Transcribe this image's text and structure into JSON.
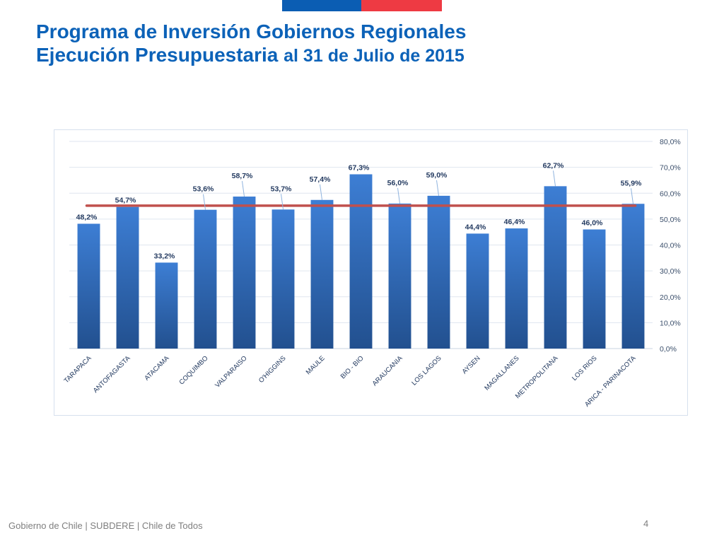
{
  "header": {
    "title_line1": "Programa de Inversión Gobiernos Regionales",
    "title_line2_bold": "Ejecución Presupuestaria",
    "title_line2_rest": "al 31 de Julio de 2015"
  },
  "footer": {
    "text": "Gobierno de Chile | SUBDERE | Chile de Todos",
    "page_number": "4"
  },
  "colors": {
    "flag_blue": "#0b5db3",
    "flag_red": "#ee3a43",
    "title": "#0c62b8",
    "bar_top": "#3d7ed4",
    "bar_bottom": "#22508f",
    "avg_line": "#c0504d"
  },
  "chart_data": {
    "type": "bar",
    "title": "",
    "xlabel": "",
    "ylabel": "",
    "ylim": [
      0,
      80
    ],
    "yticks": [
      "0,0%",
      "10,0%",
      "20,0%",
      "30,0%",
      "40,0%",
      "50,0%",
      "60,0%",
      "70,0%",
      "80,0%"
    ],
    "ytick_values": [
      0,
      10,
      20,
      30,
      40,
      50,
      60,
      70,
      80
    ],
    "y_axis_side": "right",
    "grid": true,
    "categories": [
      "TARAPACA",
      "ANTOFAGASTA",
      "ATACAMA",
      "COQUIMBO",
      "VALPARAISO",
      "O'HIGGINS",
      "MAULE",
      "BIO - BIO",
      "ARAUCANIA",
      "LOS LAGOS",
      "AYSEN",
      "MAGALLANES",
      "METROPOLITANA",
      "LOS RIOS",
      "ARICA - PARINACOTA"
    ],
    "values": [
      48.2,
      54.7,
      33.2,
      53.6,
      58.7,
      53.7,
      57.4,
      67.3,
      56.0,
      59.0,
      44.4,
      46.4,
      62.7,
      46.0,
      55.9
    ],
    "value_labels": [
      "48,2%",
      "54,7%",
      "33,2%",
      "53,6%",
      "58,7%",
      "53,7%",
      "57,4%",
      "67,3%",
      "56,0%",
      "59,0%",
      "44,4%",
      "46,4%",
      "62,7%",
      "46,0%",
      "55,9%"
    ],
    "reference_line": {
      "value": 55.2
    }
  }
}
